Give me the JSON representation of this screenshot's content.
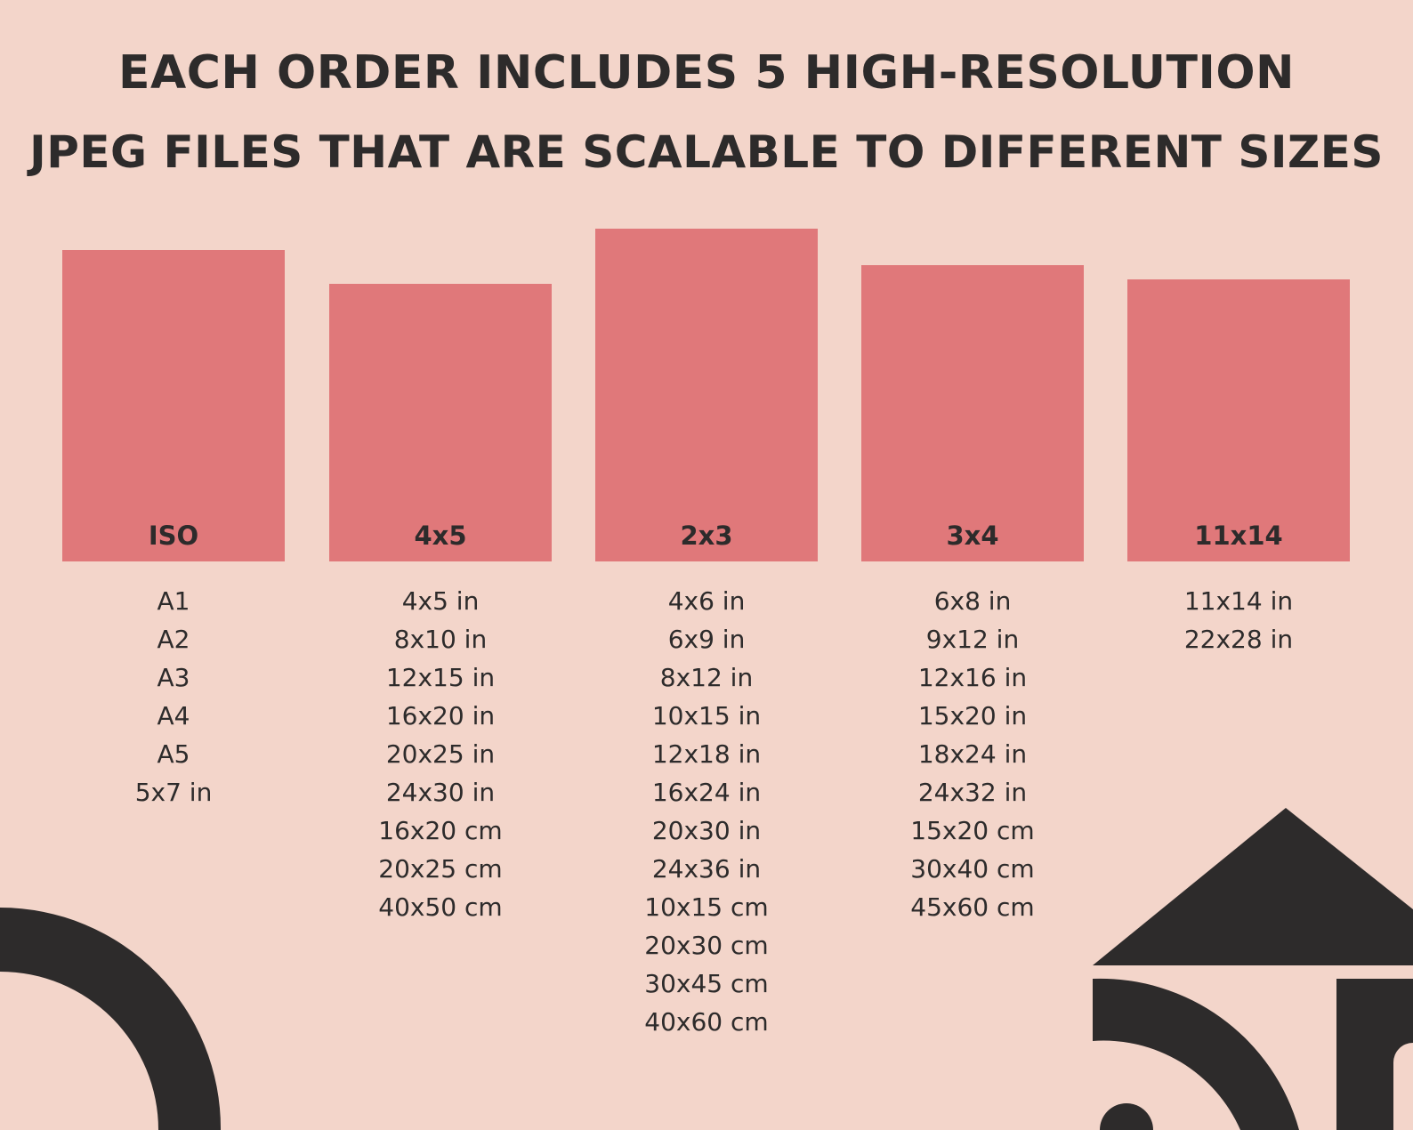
{
  "headline": {
    "line1": "EACH ORDER INCLUDES 5 HIGH-RESOLUTION",
    "line2": "JPEG FILES THAT ARE SCALABLE TO DIFFERENT SIZES"
  },
  "colors": {
    "background": "#f3d5ca",
    "panel": "#e0787a",
    "text": "#2d2b2b"
  },
  "formats": [
    {
      "label": "ISO",
      "sizes": [
        "A1",
        "A2",
        "A3",
        "A4",
        "A5",
        "5x7 in"
      ]
    },
    {
      "label": "4x5",
      "sizes": [
        "4x5 in",
        "8x10 in",
        "12x15 in",
        "16x20 in",
        "20x25 in",
        "24x30 in",
        "16x20 cm",
        "20x25 cm",
        "40x50 cm"
      ]
    },
    {
      "label": "2x3",
      "sizes": [
        "4x6 in",
        "6x9 in",
        "8x12 in",
        "10x15 in",
        "12x18 in",
        "16x24 in",
        "20x30 in",
        "24x36 in",
        "10x15 cm",
        "20x30 cm",
        "30x45 cm",
        "40x60 cm"
      ]
    },
    {
      "label": "3x4",
      "sizes": [
        "6x8 in",
        "9x12 in",
        "12x16 in",
        "15x20 in",
        "18x24 in",
        "24x32 in",
        "15x20 cm",
        "30x40 cm",
        "45x60 cm"
      ]
    },
    {
      "label": "11x14",
      "sizes": [
        "11x14 in",
        "22x28 in"
      ]
    }
  ]
}
